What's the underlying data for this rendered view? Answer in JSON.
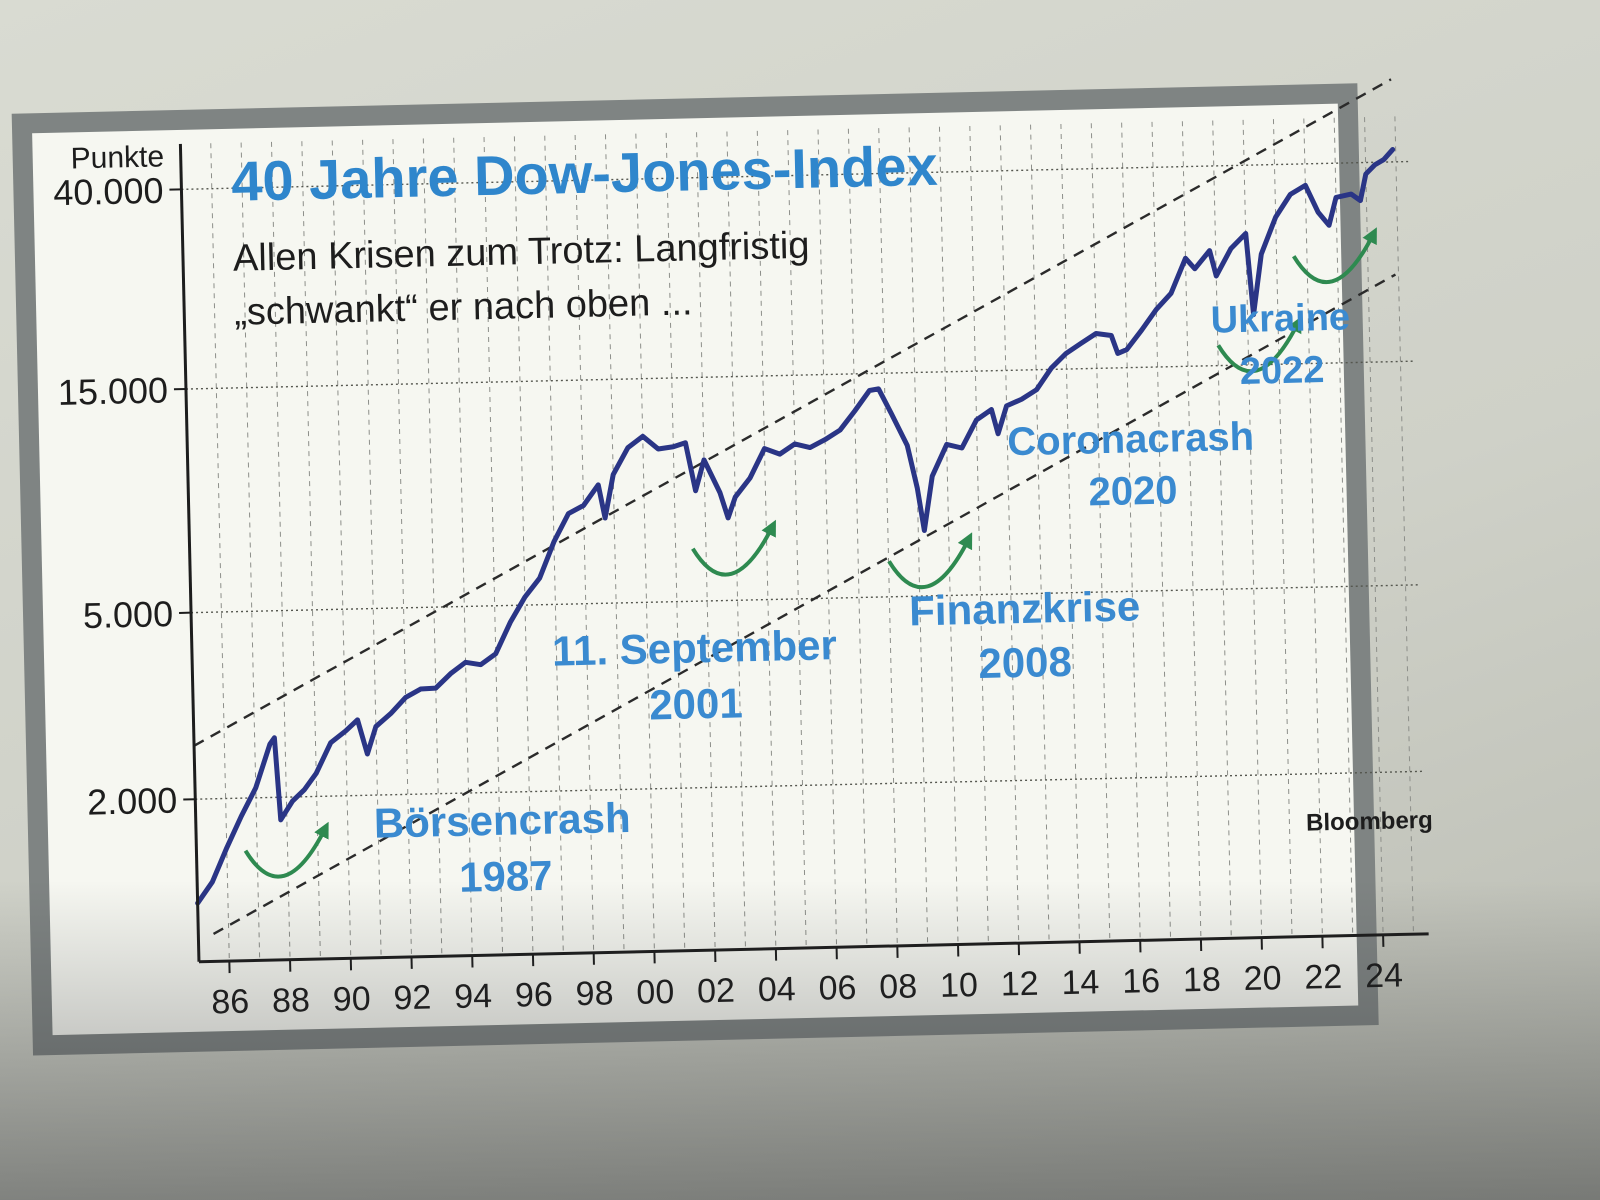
{
  "chart_data": {
    "type": "line",
    "title": "40 Jahre Dow-Jones-Index",
    "subtitle_line1": "Allen Krisen zum Trotz: Langfristig",
    "subtitle_line2": "„schwankt“ er nach oben ...",
    "ylabel": "Punkte",
    "source": "Bloomberg",
    "yscale": "log",
    "ylim": [
      900,
      50000
    ],
    "xlim": [
      1985,
      2025.5
    ],
    "y_ticks": [
      {
        "value": 2000,
        "label": "2.000"
      },
      {
        "value": 5000,
        "label": "5.000"
      },
      {
        "value": 15000,
        "label": "15.000"
      },
      {
        "value": 40000,
        "label": "40.000"
      }
    ],
    "x_ticks": [
      {
        "value": 1986,
        "label": "86"
      },
      {
        "value": 1988,
        "label": "88"
      },
      {
        "value": 1990,
        "label": "90"
      },
      {
        "value": 1992,
        "label": "92"
      },
      {
        "value": 1994,
        "label": "94"
      },
      {
        "value": 1996,
        "label": "96"
      },
      {
        "value": 1998,
        "label": "98"
      },
      {
        "value": 2000,
        "label": "00"
      },
      {
        "value": 2002,
        "label": "02"
      },
      {
        "value": 2004,
        "label": "04"
      },
      {
        "value": 2006,
        "label": "06"
      },
      {
        "value": 2008,
        "label": "08"
      },
      {
        "value": 2010,
        "label": "10"
      },
      {
        "value": 2012,
        "label": "12"
      },
      {
        "value": 2014,
        "label": "14"
      },
      {
        "value": 2016,
        "label": "16"
      },
      {
        "value": 2018,
        "label": "18"
      },
      {
        "value": 2020,
        "label": "20"
      },
      {
        "value": 2022,
        "label": "22"
      },
      {
        "value": 2024,
        "label": "24"
      }
    ],
    "grid": true,
    "series": [
      {
        "color": "#2a3586",
        "points": [
          [
            1985.0,
            1200
          ],
          [
            1985.5,
            1330
          ],
          [
            1986.0,
            1570
          ],
          [
            1986.5,
            1830
          ],
          [
            1987.0,
            2100
          ],
          [
            1987.5,
            2600
          ],
          [
            1987.65,
            2680
          ],
          [
            1987.8,
            1790
          ],
          [
            1988.2,
            1960
          ],
          [
            1988.6,
            2070
          ],
          [
            1989.0,
            2240
          ],
          [
            1989.5,
            2600
          ],
          [
            1990.0,
            2750
          ],
          [
            1990.4,
            2900
          ],
          [
            1990.7,
            2450
          ],
          [
            1991.0,
            2800
          ],
          [
            1991.5,
            2980
          ],
          [
            1992.0,
            3220
          ],
          [
            1992.5,
            3350
          ],
          [
            1993.0,
            3360
          ],
          [
            1993.5,
            3600
          ],
          [
            1994.0,
            3800
          ],
          [
            1994.5,
            3750
          ],
          [
            1995.0,
            3950
          ],
          [
            1995.5,
            4600
          ],
          [
            1996.0,
            5200
          ],
          [
            1996.5,
            5700
          ],
          [
            1997.0,
            6800
          ],
          [
            1997.5,
            7800
          ],
          [
            1998.0,
            8100
          ],
          [
            1998.5,
            8950
          ],
          [
            1998.7,
            7600
          ],
          [
            1999.0,
            9400
          ],
          [
            1999.5,
            10700
          ],
          [
            2000.0,
            11300
          ],
          [
            2000.5,
            10600
          ],
          [
            2001.0,
            10700
          ],
          [
            2001.4,
            10900
          ],
          [
            2001.7,
            8600
          ],
          [
            2002.0,
            10000
          ],
          [
            2002.5,
            8500
          ],
          [
            2002.75,
            7500
          ],
          [
            2003.0,
            8300
          ],
          [
            2003.5,
            9100
          ],
          [
            2004.0,
            10500
          ],
          [
            2004.5,
            10200
          ],
          [
            2005.0,
            10700
          ],
          [
            2005.5,
            10500
          ],
          [
            2006.0,
            10900
          ],
          [
            2006.5,
            11400
          ],
          [
            2007.0,
            12500
          ],
          [
            2007.5,
            13800
          ],
          [
            2007.8,
            13900
          ],
          [
            2008.2,
            12300
          ],
          [
            2008.7,
            10500
          ],
          [
            2009.0,
            8500
          ],
          [
            2009.2,
            6900
          ],
          [
            2009.5,
            9000
          ],
          [
            2010.0,
            10500
          ],
          [
            2010.5,
            10300
          ],
          [
            2011.0,
            11800
          ],
          [
            2011.5,
            12400
          ],
          [
            2011.7,
            11000
          ],
          [
            2012.0,
            12600
          ],
          [
            2012.5,
            13000
          ],
          [
            2013.0,
            13600
          ],
          [
            2013.5,
            15100
          ],
          [
            2014.0,
            16200
          ],
          [
            2014.5,
            17000
          ],
          [
            2015.0,
            17800
          ],
          [
            2015.5,
            17600
          ],
          [
            2015.7,
            16100
          ],
          [
            2016.0,
            16400
          ],
          [
            2016.5,
            18000
          ],
          [
            2017.0,
            19900
          ],
          [
            2017.5,
            21500
          ],
          [
            2018.0,
            25500
          ],
          [
            2018.3,
            24200
          ],
          [
            2018.8,
            26400
          ],
          [
            2019.0,
            23300
          ],
          [
            2019.5,
            26600
          ],
          [
            2020.0,
            28600
          ],
          [
            2020.2,
            19200
          ],
          [
            2020.5,
            25800
          ],
          [
            2021.0,
            30900
          ],
          [
            2021.5,
            34500
          ],
          [
            2022.0,
            36000
          ],
          [
            2022.4,
            31500
          ],
          [
            2022.75,
            29500
          ],
          [
            2023.0,
            33800
          ],
          [
            2023.5,
            34300
          ],
          [
            2023.8,
            33200
          ],
          [
            2024.0,
            37800
          ],
          [
            2024.3,
            39500
          ],
          [
            2024.6,
            40500
          ],
          [
            2024.9,
            42500
          ]
        ]
      }
    ],
    "trend_channel": {
      "upper": [
        [
          1985.0,
          2600
        ],
        [
          2024.9,
          60000
        ]
      ],
      "lower": [
        [
          1985.5,
          1030
        ],
        [
          2024.9,
          23000
        ]
      ]
    },
    "annotations": [
      {
        "line1": "Börsencrash",
        "line2": "1987"
      },
      {
        "line1": "11. September",
        "line2": "2001"
      },
      {
        "line1": "Finanzkrise",
        "line2": "2008"
      },
      {
        "line1": "Coronacrash",
        "line2": "2020"
      },
      {
        "line1": "Ukraine",
        "line2": "2022"
      }
    ]
  },
  "colors": {
    "title": "#2f86cc",
    "annotation": "#3a8ad0",
    "line": "#2a3586",
    "arrow": "#2e8a50",
    "frame": "#818685"
  }
}
